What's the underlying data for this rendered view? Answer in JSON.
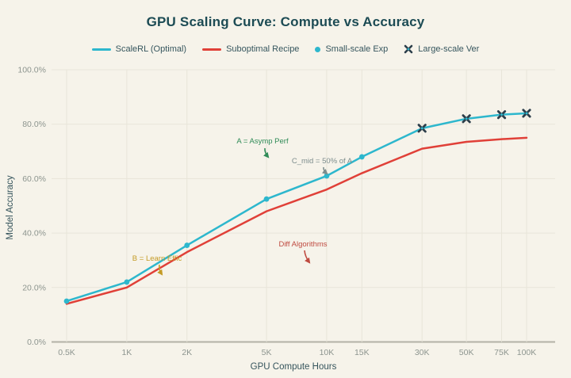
{
  "chart": {
    "title": "GPU Scaling Curve: Compute vs Accuracy",
    "x_axis": {
      "title": "GPU Compute Hours"
    },
    "y_axis": {
      "title": "Model Accuracy"
    },
    "legend": [
      {
        "label": "ScaleRL (Optimal)",
        "type": "line",
        "color": "#2db7cd"
      },
      {
        "label": "Suboptimal Recipe",
        "type": "line",
        "color": "#e04038"
      },
      {
        "label": "Small-scale Exp",
        "type": "dot",
        "color": "#2db7cd"
      },
      {
        "label": "Large-scale Ver",
        "type": "x",
        "color": "#2c3e4a"
      }
    ]
  },
  "chart_data": {
    "type": "line",
    "title": "GPU Scaling Curve: Compute vs Accuracy",
    "xlabel": "GPU Compute Hours",
    "ylabel": "Model Accuracy",
    "x_scale": "log",
    "legend_position": "top",
    "grid": true,
    "categories": [
      "0.5K",
      "1K",
      "2K",
      "5K",
      "10K",
      "15K",
      "30K",
      "50K",
      "75K",
      "100K"
    ],
    "x_hours": [
      500,
      1000,
      2000,
      5000,
      10000,
      15000,
      30000,
      50000,
      75000,
      100000
    ],
    "ylim": [
      0,
      100
    ],
    "y_ticks_pct": [
      0,
      20,
      40,
      60,
      80,
      100
    ],
    "y_tick_labels": [
      "0.0%",
      "20.0%",
      "40.0%",
      "60.0%",
      "80.0%",
      "100.0%"
    ],
    "series": [
      {
        "name": "ScaleRL (Optimal)",
        "color": "#2db7cd",
        "values_pct": [
          15,
          22,
          35.5,
          52.5,
          61,
          68,
          78.5,
          82,
          83.5,
          84
        ]
      },
      {
        "name": "Suboptimal Recipe",
        "color": "#e04038",
        "values_pct": [
          14,
          20,
          33,
          48,
          56,
          62,
          71,
          73.5,
          74.5,
          75
        ]
      }
    ],
    "markers": [
      {
        "name": "Small-scale Exp",
        "style": "dot",
        "color": "#2db7cd",
        "x_hours": [
          500,
          1000,
          2000,
          5000,
          10000,
          15000
        ],
        "values_pct": [
          15,
          22,
          35.5,
          52.5,
          61,
          68
        ]
      },
      {
        "name": "Large-scale Ver",
        "style": "x",
        "color": "#2c3e4a",
        "x_hours": [
          30000,
          50000,
          75000,
          100000
        ],
        "values_pct": [
          78.5,
          82,
          83.5,
          84
        ]
      }
    ],
    "annotations": [
      {
        "id": "asymp",
        "text": "A = Asymp Perf",
        "color": "#2f8b57"
      },
      {
        "id": "cmid",
        "text": "C_mid = 50% of A",
        "color": "#7d8d8d"
      },
      {
        "id": "learn",
        "text": "B = Learn Effic",
        "color": "#c49b25"
      },
      {
        "id": "diff",
        "text": "Diff Algorithms",
        "color": "#bf4a40"
      }
    ]
  }
}
